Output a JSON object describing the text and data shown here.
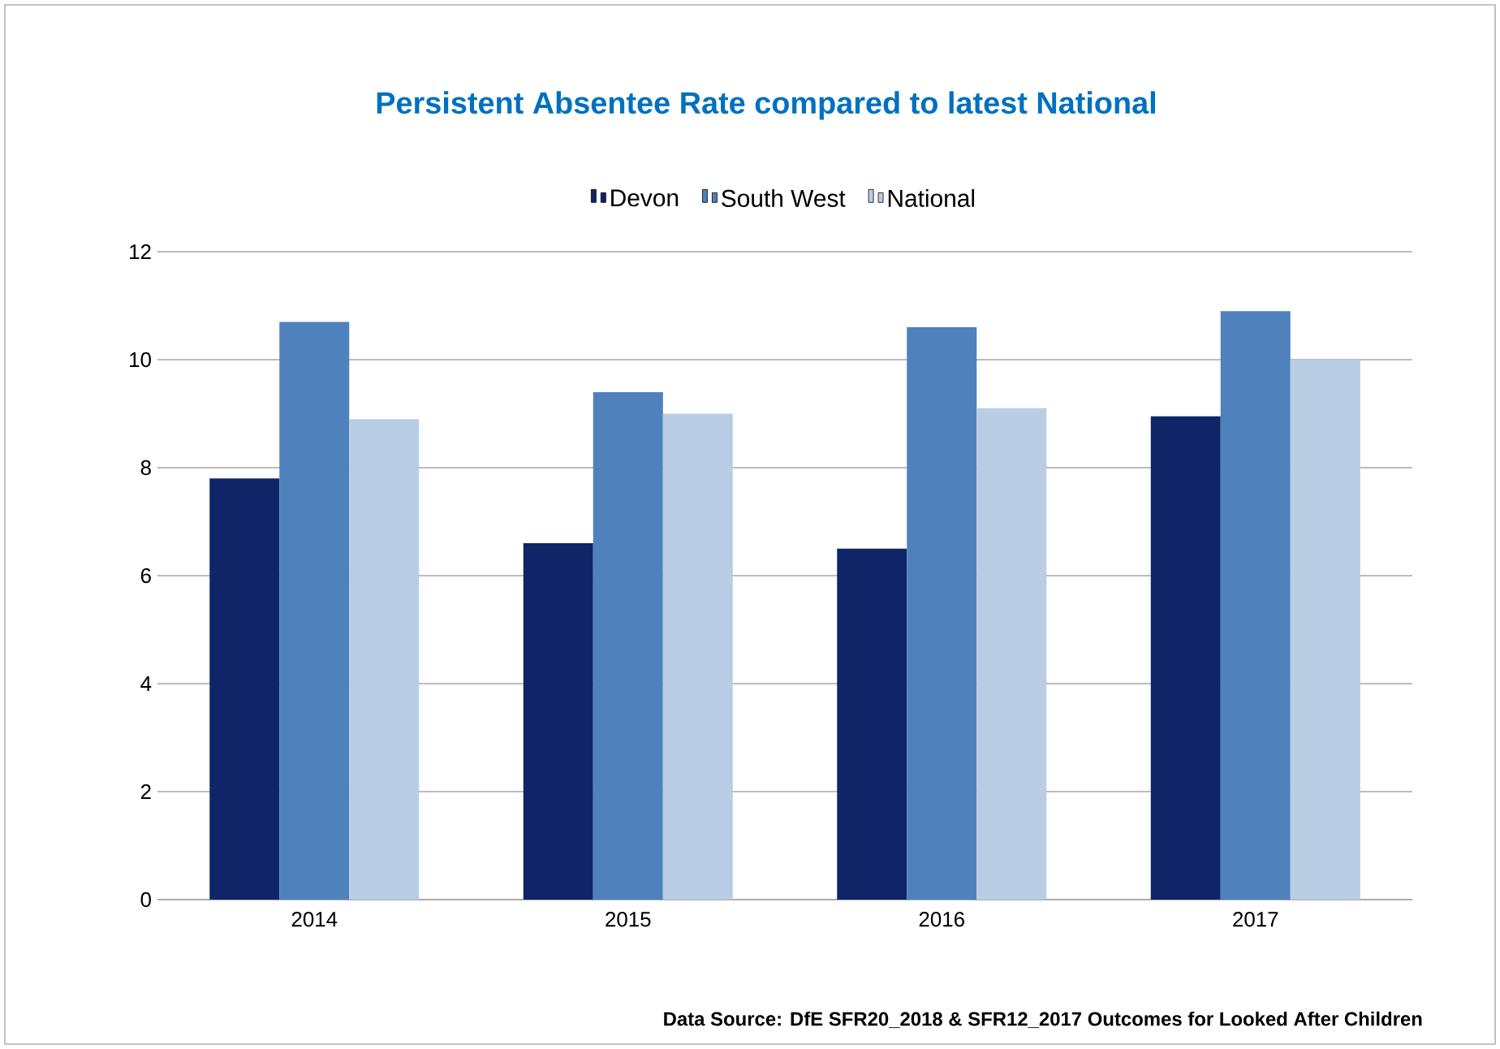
{
  "chart_data": {
    "type": "bar",
    "title": "Persistent Absentee Rate compared to latest National",
    "categories": [
      "2014",
      "2015",
      "2016",
      "2017"
    ],
    "series": [
      {
        "name": "Devon",
        "color": "#0f2567",
        "values": [
          7.8,
          6.6,
          6.5,
          8.95
        ]
      },
      {
        "name": "South West",
        "color": "#4f81bd",
        "values": [
          10.7,
          9.4,
          10.6,
          10.9
        ]
      },
      {
        "name": "National",
        "color": "#b9cde5",
        "values": [
          8.9,
          9.0,
          9.1,
          10.0
        ]
      }
    ],
    "ylim": [
      0,
      12
    ],
    "yticks": [
      0,
      2,
      4,
      6,
      8,
      10,
      12
    ],
    "grid": "y",
    "legend": "top",
    "annotations": [
      "Data Source: DfE SFR20_2018 & SFR12_2017 Outcomes for Looked After Children"
    ]
  }
}
